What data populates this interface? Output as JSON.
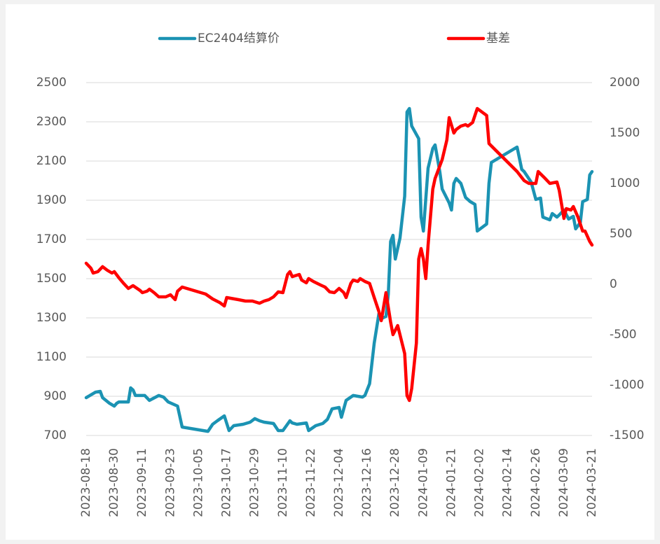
{
  "chart_data": {
    "type": "line",
    "xlim": [
      "2023-08-18",
      "2024-03-21"
    ],
    "xticks": [
      "2023-08-18",
      "2023-08-30",
      "2023-09-11",
      "2023-09-23",
      "2023-10-05",
      "2023-10-17",
      "2023-10-29",
      "2023-11-10",
      "2023-11-22",
      "2023-12-04",
      "2023-12-16",
      "2023-12-28",
      "2024-01-09",
      "2024-01-21",
      "2024-02-02",
      "2024-02-14",
      "2024-02-26",
      "2024-03-09",
      "2024-03-21"
    ],
    "ylim": [
      700,
      2500
    ],
    "yticks": [
      700,
      900,
      1100,
      1300,
      1500,
      1700,
      1900,
      2100,
      2300,
      2500
    ],
    "y2lim": [
      -1500,
      2000
    ],
    "y2ticks": [
      -1500,
      -1000,
      -500,
      0,
      500,
      1000,
      1500,
      2000
    ],
    "grid": true,
    "legend": "top",
    "series": [
      {
        "name": "EC2404结算价",
        "color": "#1b93b3",
        "x": [
          "2023-08-18",
          "2023-08-22",
          "2023-08-24",
          "2023-08-25",
          "2023-08-28",
          "2023-08-30",
          "2023-08-31",
          "2023-09-01",
          "2023-09-05",
          "2023-09-06",
          "2023-09-07",
          "2023-09-08",
          "2023-09-12",
          "2023-09-14",
          "2023-09-18",
          "2023-09-20",
          "2023-09-22",
          "2023-09-26",
          "2023-09-28",
          "2023-10-09",
          "2023-10-11",
          "2023-10-13",
          "2023-10-16",
          "2023-10-18",
          "2023-10-20",
          "2023-10-24",
          "2023-10-27",
          "2023-10-29",
          "2023-10-31",
          "2023-11-02",
          "2023-11-06",
          "2023-11-08",
          "2023-11-10",
          "2023-11-13",
          "2023-11-14",
          "2023-11-16",
          "2023-11-20",
          "2023-11-21",
          "2023-11-24",
          "2023-11-27",
          "2023-11-29",
          "2023-12-01",
          "2023-12-04",
          "2023-12-05",
          "2023-12-07",
          "2023-12-10",
          "2023-12-12",
          "2023-12-14",
          "2023-12-15",
          "2023-12-17",
          "2023-12-19",
          "2023-12-21",
          "2023-12-22",
          "2023-12-24",
          "2023-12-25",
          "2023-12-26",
          "2023-12-27",
          "2023-12-28",
          "2023-12-30",
          "2024-01-01",
          "2024-01-02",
          "2024-01-03",
          "2024-01-04",
          "2024-01-07",
          "2024-01-08",
          "2024-01-09",
          "2024-01-11",
          "2024-01-13",
          "2024-01-14",
          "2024-01-16",
          "2024-01-17",
          "2024-01-20",
          "2024-01-21",
          "2024-01-22",
          "2024-01-23",
          "2024-01-25",
          "2024-01-27",
          "2024-01-29",
          "2024-01-31",
          "2024-02-01",
          "2024-02-05",
          "2024-02-06",
          "2024-02-07",
          "2024-02-18",
          "2024-02-20",
          "2024-02-21",
          "2024-02-24",
          "2024-02-26",
          "2024-02-28",
          "2024-02-29",
          "2024-03-03",
          "2024-03-04",
          "2024-03-06",
          "2024-03-07",
          "2024-03-09",
          "2024-03-11",
          "2024-03-13",
          "2024-03-14",
          "2024-03-16",
          "2024-03-17",
          "2024-03-19",
          "2024-03-20",
          "2024-03-21"
        ],
        "values": [
          893,
          921,
          925,
          893,
          864,
          850,
          864,
          871,
          871,
          943,
          932,
          904,
          904,
          879,
          904,
          896,
          871,
          850,
          743,
          721,
          757,
          775,
          800,
          725,
          750,
          757,
          768,
          786,
          775,
          768,
          761,
          725,
          725,
          775,
          764,
          757,
          764,
          725,
          750,
          761,
          782,
          836,
          843,
          793,
          879,
          904,
          900,
          896,
          904,
          964,
          1171,
          1321,
          1296,
          1307,
          1421,
          1689,
          1721,
          1600,
          1707,
          1921,
          2350,
          2368,
          2279,
          2214,
          1814,
          1743,
          2064,
          2164,
          2182,
          2046,
          1957,
          1886,
          1850,
          1986,
          2011,
          1986,
          1914,
          1893,
          1879,
          1743,
          1779,
          1986,
          2093,
          2171,
          2057,
          2046,
          1993,
          1904,
          1911,
          1814,
          1800,
          1832,
          1814,
          1825,
          1850,
          1804,
          1818,
          1754,
          1786,
          1893,
          1904,
          2029,
          2046
        ]
      },
      {
        "name": "基差",
        "color": "#ff0000",
        "axis": "y2",
        "x": [
          "2023-08-18",
          "2023-08-20",
          "2023-08-21",
          "2023-08-23",
          "2023-08-25",
          "2023-08-27",
          "2023-08-29",
          "2023-08-30",
          "2023-09-01",
          "2023-09-03",
          "2023-09-05",
          "2023-09-06",
          "2023-09-07",
          "2023-09-10",
          "2023-09-11",
          "2023-09-13",
          "2023-09-14",
          "2023-09-16",
          "2023-09-18",
          "2023-09-21",
          "2023-09-23",
          "2023-09-25",
          "2023-09-26",
          "2023-09-28",
          "2023-10-08",
          "2023-10-11",
          "2023-10-14",
          "2023-10-16",
          "2023-10-17",
          "2023-10-22",
          "2023-10-25",
          "2023-10-28",
          "2023-10-31",
          "2023-11-02",
          "2023-11-04",
          "2023-11-06",
          "2023-11-08",
          "2023-11-10",
          "2023-11-12",
          "2023-11-13",
          "2023-11-14",
          "2023-11-17",
          "2023-11-18",
          "2023-11-20",
          "2023-11-21",
          "2023-11-23",
          "2023-11-26",
          "2023-11-28",
          "2023-11-30",
          "2023-12-02",
          "2023-12-04",
          "2023-12-06",
          "2023-12-07",
          "2023-12-09",
          "2023-12-10",
          "2023-12-12",
          "2023-12-13",
          "2023-12-15",
          "2023-12-17",
          "2023-12-19",
          "2023-12-21",
          "2023-12-22",
          "2023-12-24",
          "2023-12-26",
          "2023-12-27",
          "2023-12-29",
          "2024-01-01",
          "2024-01-02",
          "2024-01-03",
          "2024-01-04",
          "2024-01-06",
          "2024-01-07",
          "2024-01-08",
          "2024-01-09",
          "2024-01-10",
          "2024-01-11",
          "2024-01-13",
          "2024-01-14",
          "2024-01-17",
          "2024-01-19",
          "2024-01-20",
          "2024-01-22",
          "2024-01-23",
          "2024-01-25",
          "2024-01-27",
          "2024-01-28",
          "2024-01-30",
          "2024-02-01",
          "2024-02-03",
          "2024-02-05",
          "2024-02-06",
          "2024-02-09",
          "2024-02-18",
          "2024-02-21",
          "2024-02-23",
          "2024-02-26",
          "2024-02-27",
          "2024-03-01",
          "2024-03-03",
          "2024-03-06",
          "2024-03-07",
          "2024-03-09",
          "2024-03-10",
          "2024-03-12",
          "2024-03-13",
          "2024-03-15",
          "2024-03-17",
          "2024-03-18",
          "2024-03-20",
          "2024-03-21"
        ],
        "values": [
          208,
          160,
          111,
          125,
          174,
          139,
          111,
          125,
          63,
          8,
          -42,
          -28,
          -14,
          -62,
          -83,
          -69,
          -49,
          -83,
          -125,
          -125,
          -104,
          -153,
          -69,
          -28,
          -97,
          -146,
          -181,
          -215,
          -132,
          -153,
          -167,
          -167,
          -188,
          -167,
          -153,
          -125,
          -76,
          -83,
          97,
          125,
          76,
          97,
          42,
          14,
          56,
          28,
          -7,
          -28,
          -76,
          -83,
          -42,
          -83,
          -132,
          8,
          42,
          28,
          56,
          28,
          8,
          -132,
          -271,
          -361,
          -83,
          -375,
          -500,
          -410,
          -688,
          -1104,
          -1153,
          -1035,
          -583,
          250,
          354,
          250,
          56,
          389,
          944,
          1049,
          1236,
          1431,
          1653,
          1500,
          1535,
          1569,
          1583,
          1569,
          1604,
          1743,
          1708,
          1674,
          1396,
          1326,
          1118,
          1028,
          1000,
          1000,
          1118,
          1049,
          1000,
          1014,
          931,
          653,
          750,
          736,
          771,
          667,
          528,
          528,
          424,
          389
        ]
      }
    ]
  }
}
